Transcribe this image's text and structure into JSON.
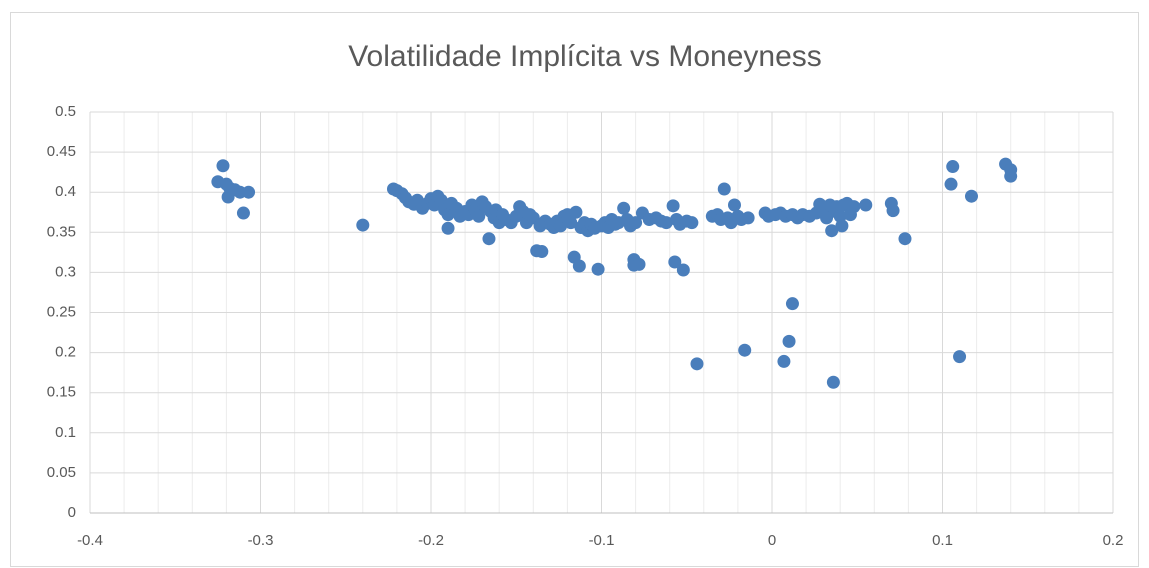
{
  "chart_data": {
    "type": "scatter",
    "title": "Volatilidade Implícita vs Moneyness",
    "color": "#4a7ebb",
    "grid": true,
    "xlim": [
      -0.4,
      0.2
    ],
    "xticks": [
      -0.4,
      -0.3,
      -0.2,
      -0.1,
      0,
      0.1,
      0.2
    ],
    "ylim": [
      0,
      0.5
    ],
    "yticks": [
      0,
      0.05,
      0.1,
      0.15,
      0.2,
      0.25,
      0.3,
      0.35,
      0.4,
      0.45,
      0.5
    ],
    "x": [
      -0.325,
      -0.322,
      -0.32,
      -0.318,
      -0.319,
      -0.315,
      -0.312,
      -0.307,
      -0.31,
      -0.24,
      -0.222,
      -0.22,
      -0.217,
      -0.215,
      -0.213,
      -0.21,
      -0.208,
      -0.205,
      -0.202,
      -0.2,
      -0.198,
      -0.196,
      -0.194,
      -0.192,
      -0.19,
      -0.19,
      -0.188,
      -0.185,
      -0.183,
      -0.18,
      -0.178,
      -0.176,
      -0.174,
      -0.172,
      -0.17,
      -0.168,
      -0.166,
      -0.165,
      -0.163,
      -0.162,
      -0.16,
      -0.158,
      -0.156,
      -0.153,
      -0.15,
      -0.148,
      -0.146,
      -0.144,
      -0.142,
      -0.14,
      -0.138,
      -0.136,
      -0.135,
      -0.133,
      -0.13,
      -0.128,
      -0.126,
      -0.124,
      -0.122,
      -0.12,
      -0.118,
      -0.116,
      -0.115,
      -0.113,
      -0.112,
      -0.11,
      -0.108,
      -0.106,
      -0.104,
      -0.102,
      -0.1,
      -0.098,
      -0.096,
      -0.094,
      -0.092,
      -0.09,
      -0.087,
      -0.085,
      -0.083,
      -0.081,
      -0.081,
      -0.08,
      -0.078,
      -0.076,
      -0.072,
      -0.068,
      -0.065,
      -0.062,
      -0.058,
      -0.057,
      -0.056,
      -0.054,
      -0.052,
      -0.05,
      -0.047,
      -0.044,
      -0.035,
      -0.032,
      -0.03,
      -0.028,
      -0.026,
      -0.024,
      -0.022,
      -0.02,
      -0.018,
      -0.016,
      -0.014,
      -0.004,
      -0.002,
      0.002,
      0.005,
      0.007,
      0.008,
      0.01,
      0.012,
      0.012,
      0.015,
      0.018,
      0.022,
      0.026,
      0.028,
      0.03,
      0.032,
      0.034,
      0.035,
      0.036,
      0.037,
      0.038,
      0.04,
      0.041,
      0.042,
      0.044,
      0.046,
      0.048,
      0.055,
      0.07,
      0.071,
      0.078,
      0.105,
      0.106,
      0.11,
      0.117,
      0.137,
      0.14,
      0.14
    ],
    "values": [
      0.413,
      0.433,
      0.41,
      0.405,
      0.394,
      0.403,
      0.4,
      0.4,
      0.374,
      0.359,
      0.404,
      0.402,
      0.398,
      0.393,
      0.388,
      0.385,
      0.39,
      0.38,
      0.386,
      0.392,
      0.384,
      0.395,
      0.39,
      0.378,
      0.372,
      0.355,
      0.386,
      0.38,
      0.37,
      0.376,
      0.372,
      0.384,
      0.378,
      0.37,
      0.388,
      0.382,
      0.342,
      0.376,
      0.368,
      0.378,
      0.362,
      0.372,
      0.366,
      0.362,
      0.37,
      0.382,
      0.376,
      0.362,
      0.372,
      0.368,
      0.327,
      0.358,
      0.326,
      0.364,
      0.36,
      0.356,
      0.364,
      0.358,
      0.37,
      0.372,
      0.362,
      0.319,
      0.375,
      0.308,
      0.356,
      0.362,
      0.352,
      0.36,
      0.355,
      0.304,
      0.358,
      0.362,
      0.356,
      0.366,
      0.36,
      0.362,
      0.38,
      0.366,
      0.358,
      0.316,
      0.309,
      0.362,
      0.31,
      0.374,
      0.366,
      0.368,
      0.364,
      0.362,
      0.383,
      0.313,
      0.366,
      0.36,
      0.303,
      0.364,
      0.362,
      0.186,
      0.37,
      0.372,
      0.366,
      0.404,
      0.368,
      0.362,
      0.384,
      0.37,
      0.366,
      0.203,
      0.368,
      0.374,
      0.37,
      0.372,
      0.374,
      0.189,
      0.37,
      0.214,
      0.261,
      0.372,
      0.368,
      0.372,
      0.37,
      0.374,
      0.385,
      0.376,
      0.368,
      0.384,
      0.352,
      0.163,
      0.376,
      0.382,
      0.37,
      0.358,
      0.384,
      0.386,
      0.372,
      0.382,
      0.384,
      0.386,
      0.377,
      0.342,
      0.41,
      0.432,
      0.195,
      0.395,
      0.435,
      0.428,
      0.42
    ]
  }
}
